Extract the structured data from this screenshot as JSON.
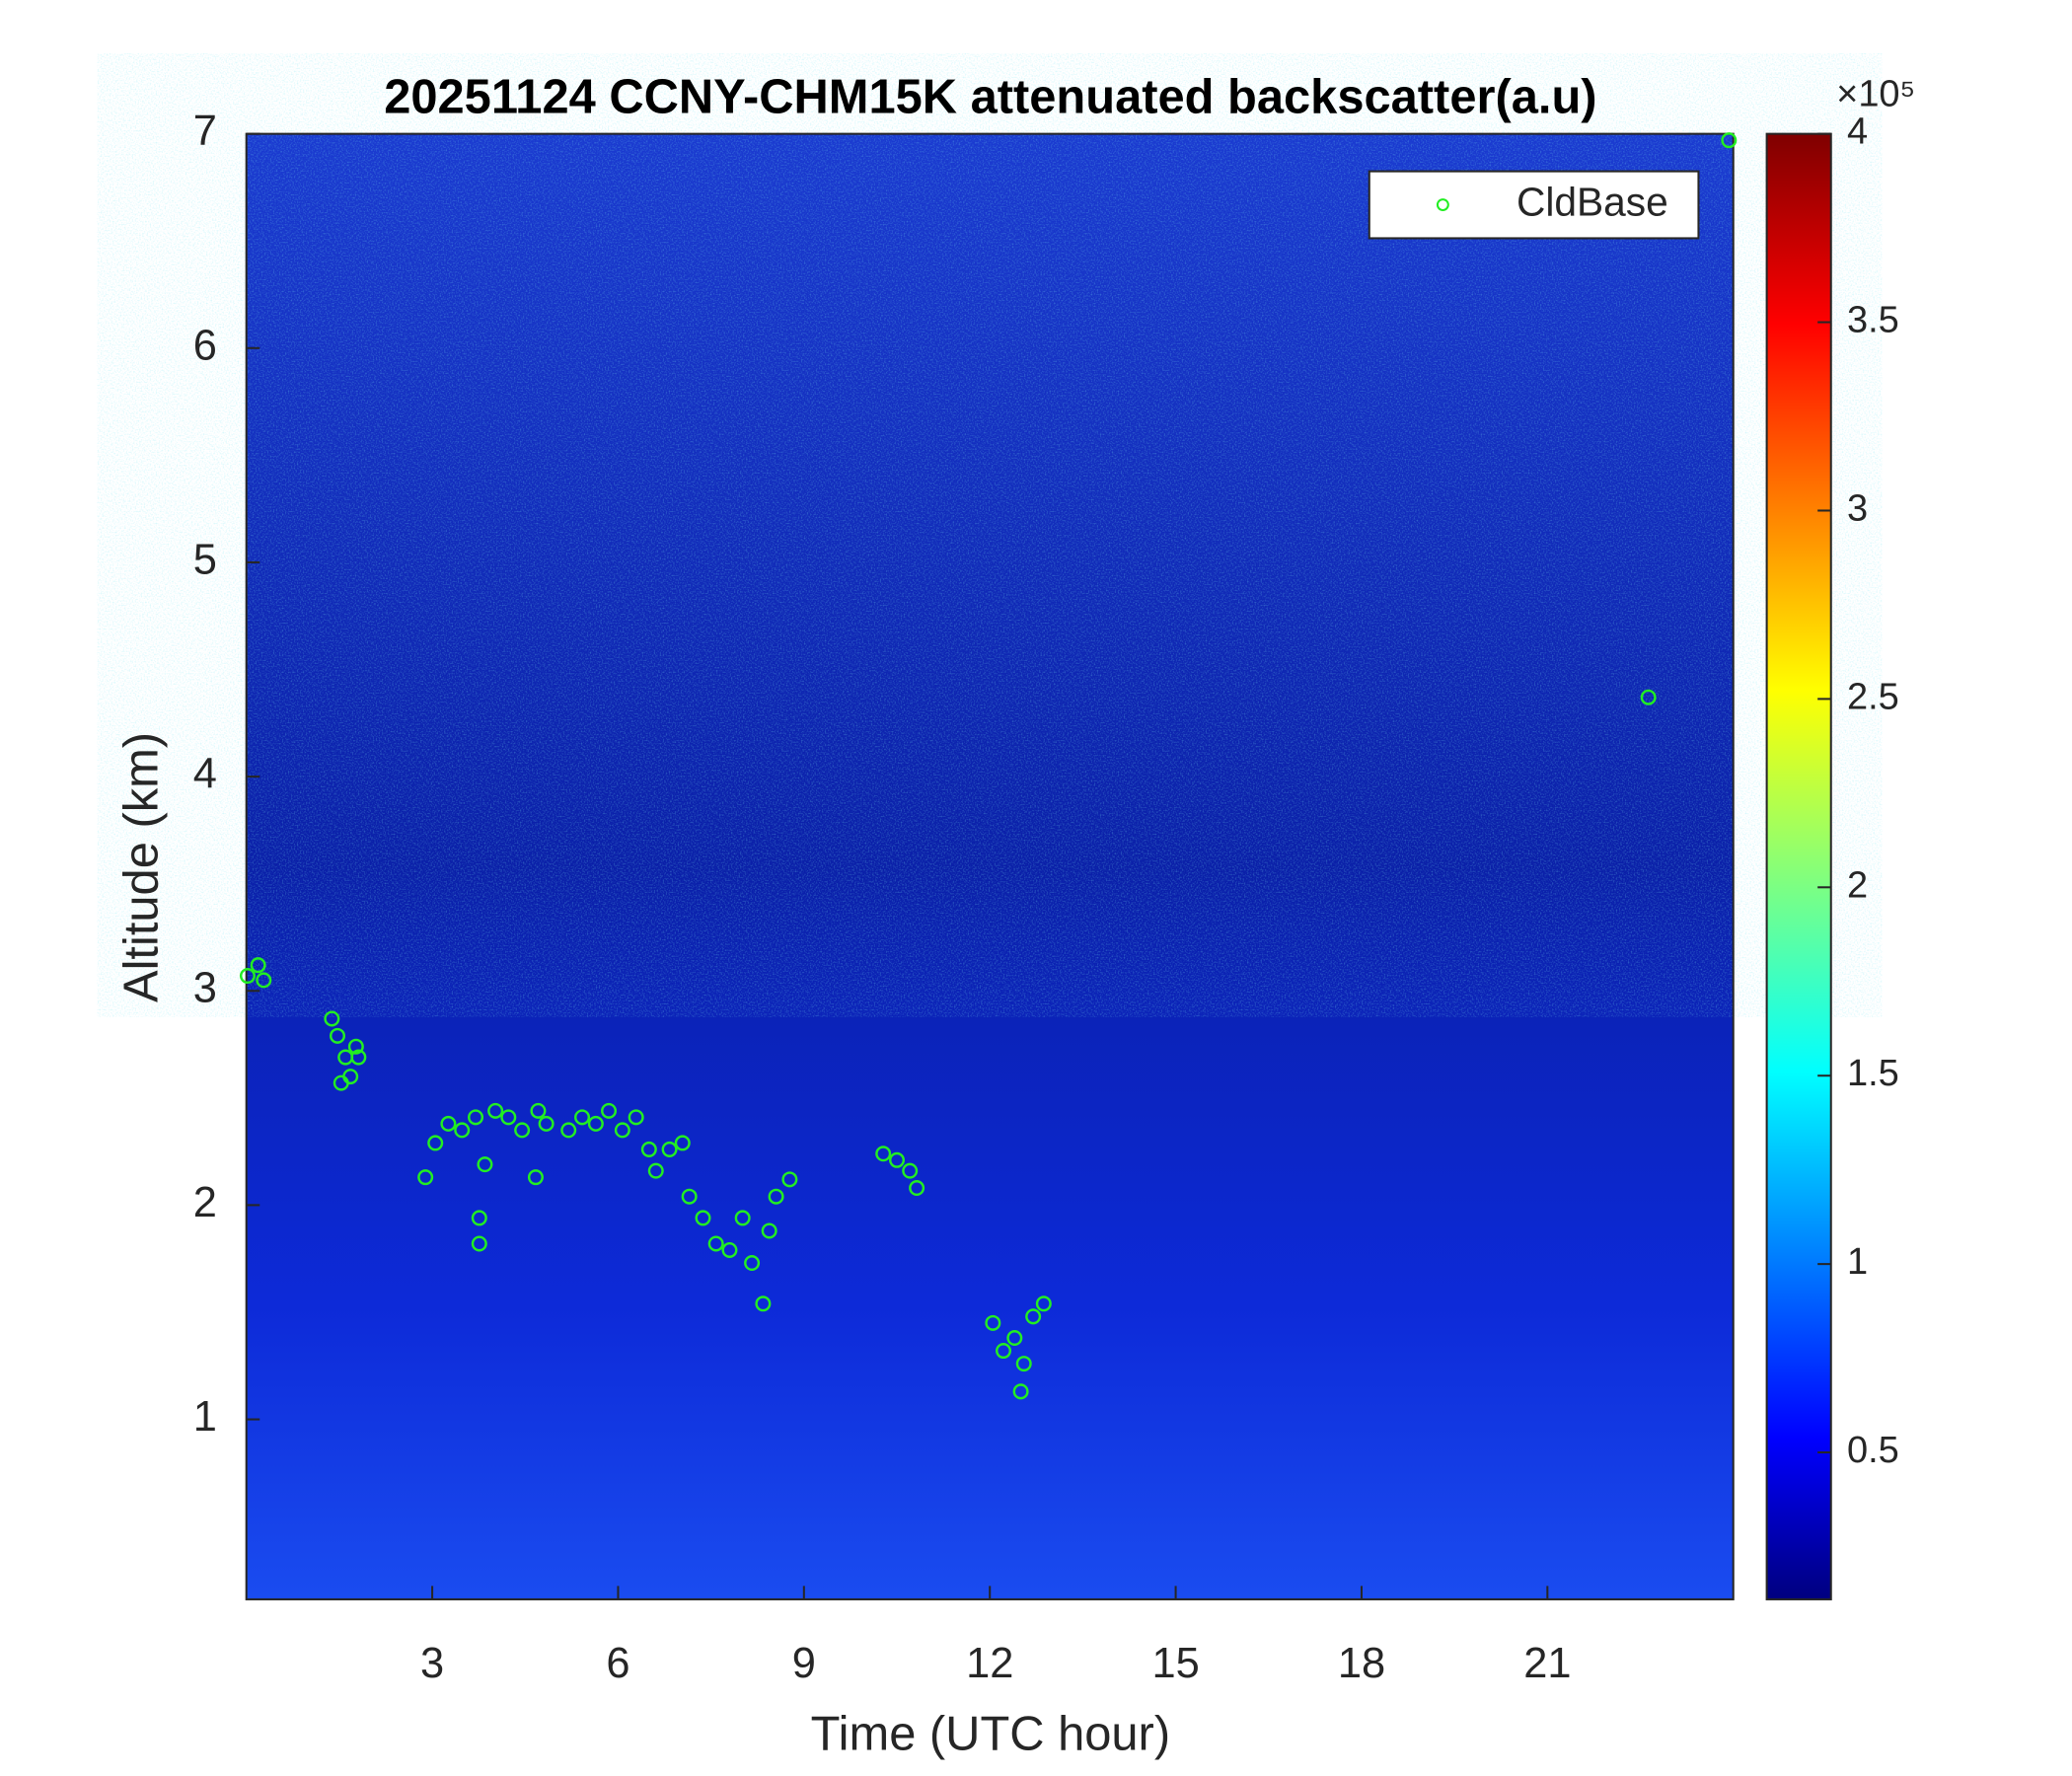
{
  "chart_data": {
    "type": "scatter",
    "title": "20251124 CCNY-CHM15K attenuated backscatter(a.u)",
    "x_label": "Time (UTC hour)",
    "y_label": "Altitude (km)",
    "xlim": [
      0,
      24
    ],
    "xticks": [
      3,
      6,
      9,
      12,
      15,
      18,
      21
    ],
    "ylim": [
      0.16,
      7
    ],
    "yticks": [
      1,
      2,
      3,
      4,
      5,
      6,
      7
    ],
    "colorbar_lim": [
      0.11,
      4
    ],
    "colorbar_ticks": [
      0.5,
      1,
      1.5,
      2,
      2.5,
      3,
      3.5,
      4
    ],
    "colorbar_scale": "×10⁵",
    "legend": "upper right",
    "series": [
      {
        "name": "CldBase",
        "color": "#22ee22",
        "x": [
          0.02,
          0.19,
          0.28,
          1.38,
          1.47,
          1.6,
          1.68,
          1.77,
          1.81,
          1.53,
          2.89,
          3.05,
          3.26,
          3.48,
          3.7,
          3.76,
          3.76,
          3.85,
          4.02,
          4.23,
          4.45,
          4.67,
          4.71,
          4.84,
          5.2,
          5.42,
          5.64,
          5.85,
          6.07,
          6.29,
          6.5,
          6.61,
          6.83,
          7.04,
          7.15,
          7.37,
          7.58,
          7.8,
          8.01,
          8.16,
          8.34,
          8.44,
          8.55,
          8.77,
          10.28,
          10.5,
          10.71,
          10.82,
          12.05,
          12.22,
          12.4,
          12.5,
          12.55,
          12.7,
          12.87,
          22.63,
          23.93
        ],
        "values": [
          3.07,
          3.12,
          3.05,
          2.87,
          2.79,
          2.69,
          2.6,
          2.74,
          2.69,
          2.57,
          2.13,
          2.29,
          2.38,
          2.35,
          2.41,
          1.94,
          1.82,
          2.19,
          2.44,
          2.41,
          2.35,
          2.13,
          2.44,
          2.38,
          2.35,
          2.41,
          2.38,
          2.44,
          2.35,
          2.41,
          2.26,
          2.16,
          2.26,
          2.29,
          2.04,
          1.94,
          1.82,
          1.79,
          1.94,
          1.73,
          1.54,
          1.88,
          2.04,
          2.12,
          2.24,
          2.21,
          2.16,
          2.08,
          1.45,
          1.32,
          1.38,
          1.13,
          1.26,
          1.48,
          1.54,
          4.37,
          6.97
        ]
      }
    ]
  }
}
